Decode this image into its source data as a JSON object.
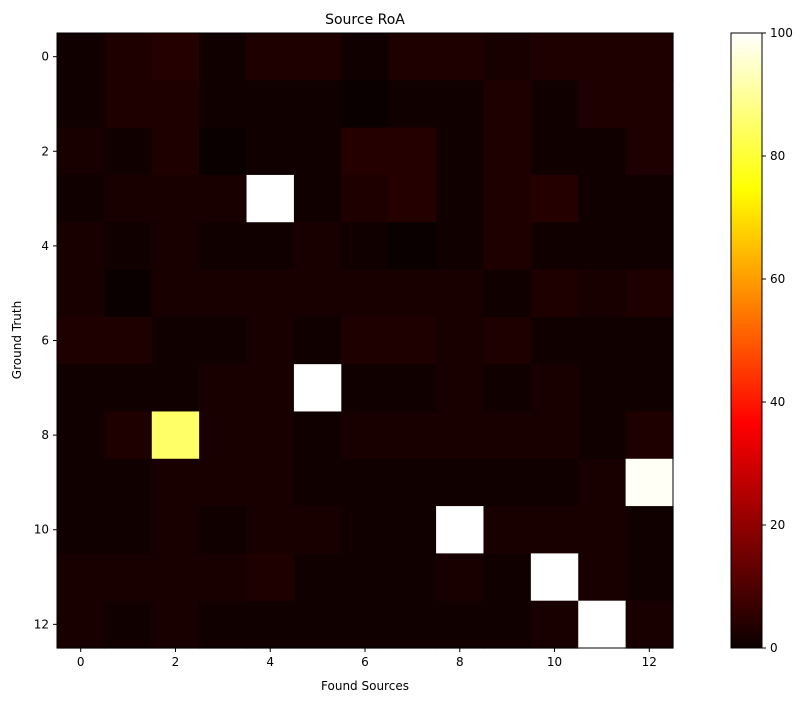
{
  "chart_data": {
    "type": "heatmap",
    "title": "Source RoA",
    "xlabel": "Found Sources",
    "ylabel": "Ground Truth",
    "x_ticks": [
      "0",
      "2",
      "4",
      "6",
      "8",
      "10",
      "12"
    ],
    "y_ticks": [
      "0",
      "2",
      "4",
      "6",
      "8",
      "10",
      "12"
    ],
    "colormap": "hot",
    "colorbar": {
      "min": 0,
      "max": 100,
      "ticks": [
        "0",
        "20",
        "40",
        "60",
        "80",
        "100"
      ]
    },
    "grid": false,
    "values": [
      [
        1,
        3,
        4,
        1,
        3,
        3,
        1,
        3,
        3,
        2,
        3,
        3,
        3
      ],
      [
        1,
        3,
        3,
        1,
        1,
        1,
        0,
        1,
        1,
        3,
        1,
        3,
        3
      ],
      [
        2,
        1,
        3,
        0,
        1,
        1,
        4,
        4,
        1,
        3,
        1,
        1,
        3
      ],
      [
        1,
        2,
        2,
        2,
        100,
        1,
        3,
        4,
        1,
        3,
        4,
        1,
        1
      ],
      [
        2,
        1,
        2,
        1,
        1,
        2,
        1,
        0,
        1,
        3,
        1,
        1,
        1
      ],
      [
        2,
        0,
        2,
        2,
        2,
        2,
        2,
        2,
        2,
        1,
        3,
        2,
        3
      ],
      [
        3,
        3,
        1,
        1,
        2,
        1,
        3,
        3,
        2,
        3,
        1,
        1,
        1
      ],
      [
        1,
        1,
        1,
        2,
        2,
        100,
        1,
        1,
        2,
        1,
        2,
        1,
        1
      ],
      [
        1,
        3,
        85,
        2,
        2,
        1,
        2,
        2,
        2,
        2,
        2,
        1,
        3
      ],
      [
        1,
        1,
        2,
        2,
        2,
        1,
        1,
        1,
        1,
        1,
        1,
        2,
        99
      ],
      [
        1,
        1,
        2,
        1,
        2,
        2,
        1,
        1,
        100,
        2,
        2,
        2,
        1
      ],
      [
        2,
        2,
        2,
        2,
        3,
        1,
        1,
        1,
        2,
        1,
        100,
        2,
        1
      ],
      [
        2,
        1,
        2,
        1,
        1,
        1,
        1,
        1,
        1,
        1,
        2,
        100,
        2
      ]
    ]
  }
}
